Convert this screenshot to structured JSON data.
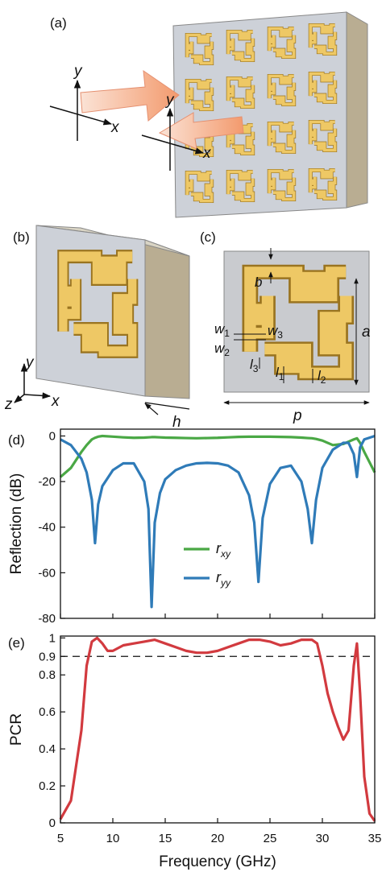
{
  "panels": {
    "a": {
      "label": "(a)",
      "incident_y": "y",
      "incident_x": "x",
      "reflected_y": "y",
      "reflected_x": "x"
    },
    "b": {
      "label": "(b)",
      "y": "y",
      "z": "z",
      "x": "x",
      "h": "h"
    },
    "c": {
      "label": "(c)",
      "dims": {
        "b": "b",
        "w1": {
          "text": "w",
          "sub": "1"
        },
        "w2": {
          "text": "w",
          "sub": "2"
        },
        "w3": {
          "text": "w",
          "sub": "3"
        },
        "l1": {
          "text": "l",
          "sub": "1"
        },
        "l2": {
          "text": "l",
          "sub": "2"
        },
        "l3": {
          "text": "l",
          "sub": "3"
        },
        "a": "a",
        "p": "p"
      }
    }
  },
  "chart_data": [
    {
      "type": "line",
      "panel_label": "(d)",
      "ylabel": "Reflection (dB)",
      "x": [
        5,
        6,
        7,
        7.5,
        8,
        8.3,
        8.6,
        9,
        10,
        11,
        12,
        13,
        13.4,
        13.7,
        14,
        14.5,
        15,
        16,
        17,
        18,
        19,
        20,
        21,
        22,
        23,
        23.5,
        23.9,
        24.3,
        25,
        26,
        27,
        28,
        28.6,
        29,
        29.4,
        30,
        31,
        32,
        32.5,
        33,
        33.3,
        33.6,
        34,
        35
      ],
      "series": [
        {
          "name": "r",
          "subscript": "xy",
          "color": "#4aa845",
          "values": [
            -18,
            -14,
            -7,
            -4,
            -1.5,
            -0.8,
            -0.3,
            0,
            -0.3,
            -0.6,
            -0.8,
            -0.7,
            -0.6,
            -0.5,
            -0.5,
            -0.6,
            -0.7,
            -0.8,
            -0.9,
            -1,
            -0.9,
            -0.8,
            -0.6,
            -0.4,
            -0.3,
            -0.3,
            -0.3,
            -0.3,
            -0.3,
            -0.4,
            -0.5,
            -0.7,
            -0.9,
            -1,
            -1.3,
            -2,
            -4,
            -3.5,
            -2.5,
            -1.5,
            -1,
            -3,
            -7,
            -16
          ]
        },
        {
          "name": "r",
          "subscript": "yy",
          "color": "#2f7bb8",
          "values": [
            -1.5,
            -4,
            -10,
            -16,
            -28,
            -47,
            -30,
            -22,
            -15,
            -12,
            -12,
            -20,
            -32,
            -75,
            -38,
            -25,
            -19,
            -15,
            -13,
            -12,
            -11.8,
            -12,
            -13,
            -16,
            -26,
            -38,
            -64,
            -36,
            -21,
            -14,
            -13,
            -20,
            -32,
            -47,
            -28,
            -14,
            -6,
            -3,
            -3,
            -8,
            -18,
            -5,
            -1.5,
            0
          ]
        }
      ],
      "xlim": [
        5,
        35
      ],
      "xticks": [
        5,
        10,
        15,
        20,
        25,
        30,
        35
      ],
      "ylim": [
        -80,
        3
      ],
      "yticks": [
        -80,
        -60,
        -40,
        -20,
        0
      ]
    },
    {
      "type": "line",
      "panel_label": "(e)",
      "ylabel": "PCR",
      "xlabel": "Frequency (GHz)",
      "x": [
        5,
        6,
        7,
        7.5,
        8,
        8.5,
        9,
        9.5,
        10,
        11,
        12,
        13,
        14,
        15,
        16,
        17,
        18,
        19,
        20,
        21,
        22,
        23,
        24,
        25,
        26,
        27,
        28,
        29,
        29.5,
        30,
        30.5,
        31,
        31.5,
        32,
        32.5,
        33,
        33.3,
        33.6,
        34,
        34.5,
        35
      ],
      "values": [
        0.02,
        0.12,
        0.5,
        0.85,
        0.98,
        1.0,
        0.97,
        0.93,
        0.93,
        0.96,
        0.97,
        0.98,
        0.99,
        0.97,
        0.95,
        0.93,
        0.92,
        0.92,
        0.93,
        0.95,
        0.97,
        0.99,
        0.99,
        0.98,
        0.96,
        0.97,
        0.99,
        0.99,
        0.97,
        0.85,
        0.7,
        0.6,
        0.52,
        0.45,
        0.5,
        0.85,
        0.97,
        0.7,
        0.25,
        0.05,
        0.01
      ],
      "color": "#d23a3f",
      "reference_line": 0.9,
      "xlim": [
        5,
        35
      ],
      "xticks": [
        5,
        10,
        15,
        20,
        25,
        30,
        35
      ],
      "ylim": [
        0,
        1.01
      ],
      "yticks": [
        0,
        0.2,
        0.4,
        0.6,
        0.8,
        0.9,
        1
      ]
    }
  ]
}
